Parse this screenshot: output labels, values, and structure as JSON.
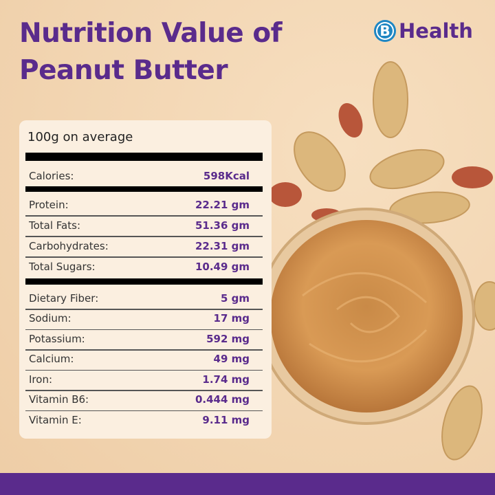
{
  "title_line1": "Nutrition Value of",
  "title_line2": "Peanut Butter",
  "logo": {
    "mark": "B",
    "text": "Health"
  },
  "panel": {
    "header": "100g on average",
    "calories": {
      "label": "Calories:",
      "value": "598Kcal"
    },
    "macros": [
      {
        "label": "Protein:",
        "value": "22.21 gm"
      },
      {
        "label": "Total Fats:",
        "value": "51.36 gm"
      },
      {
        "label": "Carbohydrates:",
        "value": "22.31 gm"
      },
      {
        "label": "Total Sugars:",
        "value": "10.49 gm"
      }
    ],
    "micros": [
      {
        "label": "Dietary Fiber:",
        "value": "5 gm"
      },
      {
        "label": "Sodium:",
        "value": "17 mg"
      },
      {
        "label": "Potassium:",
        "value": "592 mg"
      },
      {
        "label": "Calcium:",
        "value": "49 mg"
      },
      {
        "label": "Iron:",
        "value": "1.74 mg"
      },
      {
        "label": "Vitamin B6:",
        "value": "0.444 mg"
      },
      {
        "label": "Vitamin E:",
        "value": "9.11 mg"
      }
    ]
  },
  "colors": {
    "brand_purple": "#5a2b8c",
    "logo_blue": "#1f86c2",
    "background": "#f2d6b3"
  }
}
